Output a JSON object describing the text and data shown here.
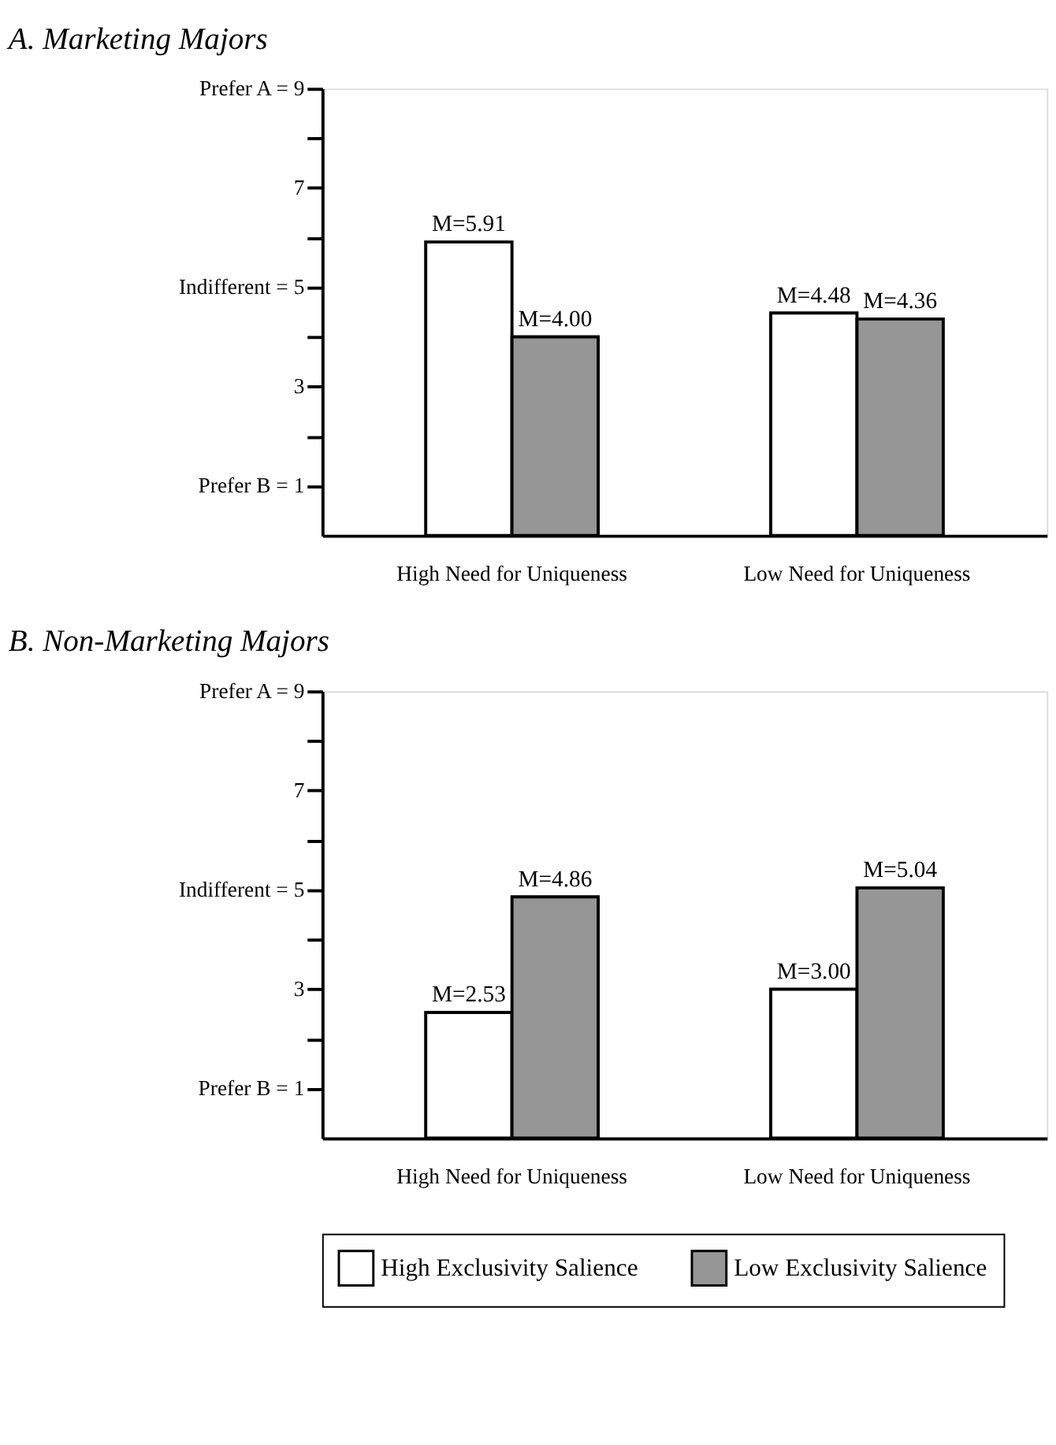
{
  "chart_data": [
    {
      "type": "bar",
      "title": "A. Marketing Majors",
      "categories": [
        "High Need for Uniqueness",
        "Low Need for Uniqueness"
      ],
      "series": [
        {
          "color": "#ffffff",
          "values": [
            5.91,
            4.48
          ],
          "value_labels": [
            "M=5.91",
            "M=4.48"
          ]
        },
        {
          "color": "#969696",
          "values": [
            4.0,
            4.36
          ],
          "value_labels": [
            "M=4.00",
            "M=4.36"
          ]
        }
      ],
      "ylim": [
        0,
        9
      ],
      "yticks": [
        {
          "value": 1,
          "label": "Prefer B = 1"
        },
        {
          "value": 2,
          "label": null
        },
        3,
        {
          "value": 4,
          "label": null
        },
        {
          "value": 5,
          "label": "Indifferent = 5"
        },
        {
          "value": 6,
          "label": null
        },
        7,
        {
          "value": 8,
          "label": null
        },
        {
          "value": 9,
          "label": "Prefer A = 9"
        }
      ],
      "grid": false,
      "legend": false
    },
    {
      "type": "bar",
      "title": "B. Non-Marketing Majors",
      "categories": [
        "High Need for Uniqueness",
        "Low Need for Uniqueness"
      ],
      "series": [
        {
          "name": "High Exclusivity Salience",
          "color": "#ffffff",
          "values": [
            2.53,
            3.0
          ],
          "value_labels": [
            "M=2.53",
            "M=3.00"
          ]
        },
        {
          "name": "Low Exclusivity Salience",
          "color": "#969696",
          "values": [
            4.86,
            5.04
          ],
          "value_labels": [
            "M=4.86",
            "M=5.04"
          ]
        }
      ],
      "ylim": [
        0,
        9
      ],
      "yticks": [
        {
          "value": 1,
          "label": "Prefer B = 1"
        },
        {
          "value": 2,
          "label": null
        },
        3,
        {
          "value": 4,
          "label": null
        },
        {
          "value": 5,
          "label": "Indifferent = 5"
        },
        {
          "value": 6,
          "label": null
        },
        7,
        {
          "value": 8,
          "label": null
        },
        {
          "value": 9,
          "label": "Prefer A = 9"
        }
      ],
      "grid": false,
      "legend": "bottom"
    }
  ]
}
